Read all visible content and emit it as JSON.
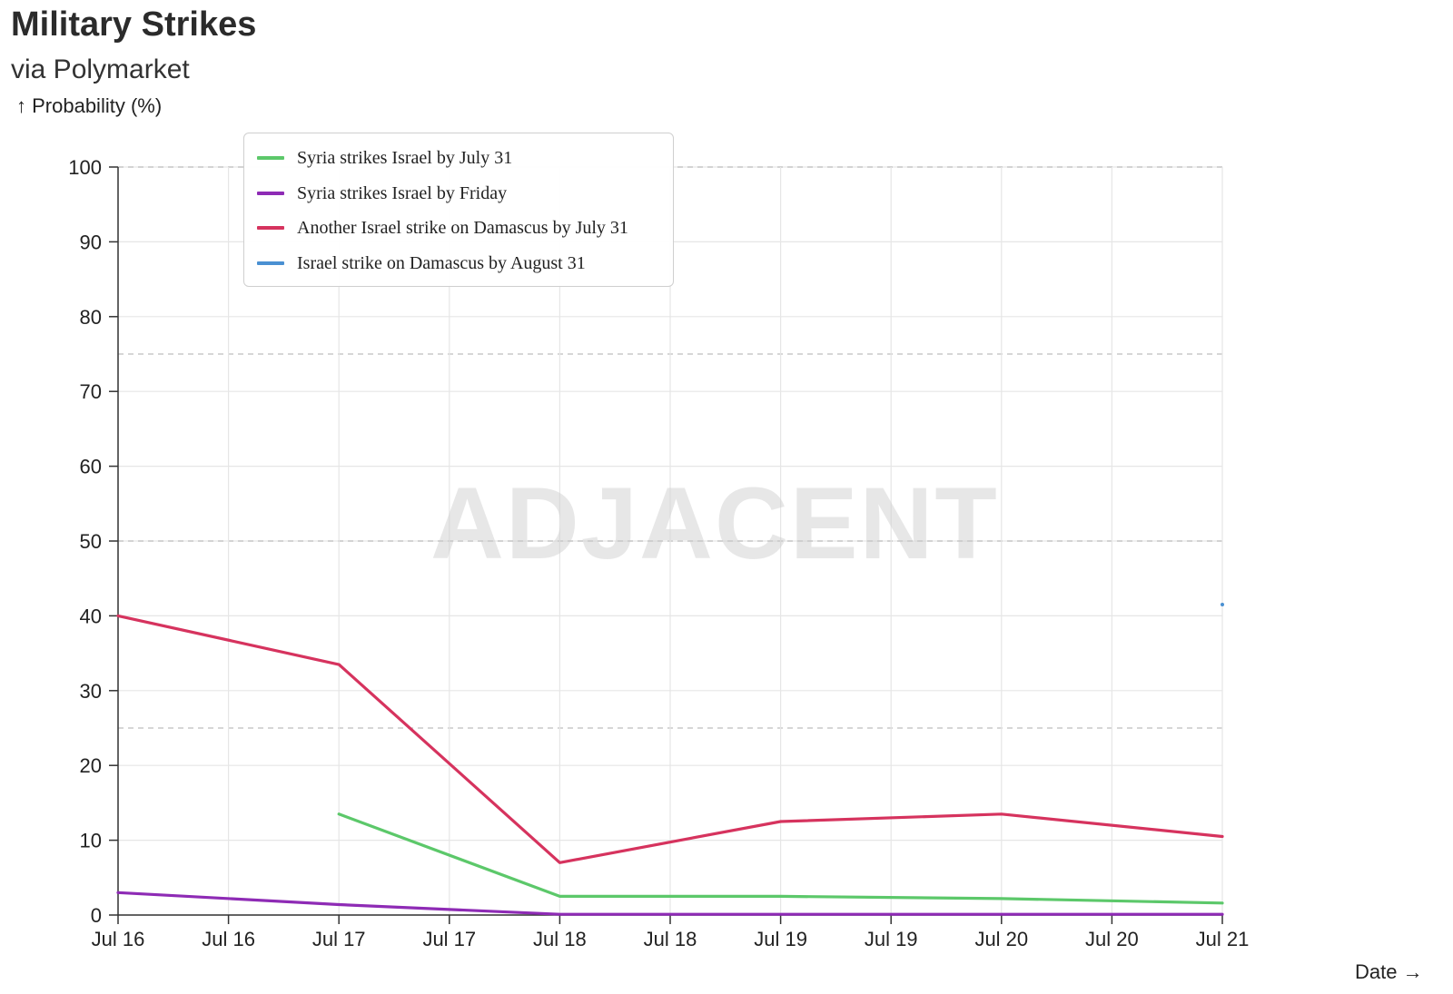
{
  "chart_data": {
    "type": "line",
    "title": "Military Strikes",
    "subtitle": "via Polymarket",
    "ylabel": "↑ Probability (%)",
    "xlabel": "Date →",
    "watermark": "ADJACENT",
    "ylim": [
      0,
      100
    ],
    "yticks": [
      0,
      10,
      20,
      30,
      40,
      50,
      60,
      70,
      80,
      90,
      100
    ],
    "ydashed": [
      25,
      50,
      75,
      100
    ],
    "x_tick_labels": [
      "Jul 16",
      "Jul 16",
      "Jul 17",
      "Jul 17",
      "Jul 18",
      "Jul 18",
      "Jul 19",
      "Jul 19",
      "Jul 20",
      "Jul 20",
      "Jul 21"
    ],
    "grid": true,
    "legend_position": "top-left",
    "series": [
      {
        "name": "Syria strikes Israel by July 31",
        "color": "#5cc86a",
        "points": [
          [
            2,
            13.5
          ],
          [
            4,
            2.5
          ],
          [
            6,
            2.5
          ],
          [
            8,
            2.2
          ],
          [
            10,
            1.6
          ]
        ]
      },
      {
        "name": "Syria strikes Israel by Friday",
        "color": "#8e2bb5",
        "points": [
          [
            0,
            3.0
          ],
          [
            2,
            1.4
          ],
          [
            4,
            0.1
          ],
          [
            6,
            0.1
          ],
          [
            8,
            0.1
          ],
          [
            10,
            0.1
          ]
        ]
      },
      {
        "name": "Another Israel strike on Damascus by July 31",
        "color": "#d6335e",
        "points": [
          [
            0,
            40.0
          ],
          [
            2,
            33.5
          ],
          [
            4,
            7.0
          ],
          [
            6,
            12.5
          ],
          [
            8,
            13.5
          ],
          [
            10,
            10.5
          ]
        ]
      },
      {
        "name": "Israel strike on Damascus by August 31",
        "color": "#4a90d2",
        "points": [
          [
            10,
            41.5
          ]
        ]
      }
    ]
  }
}
